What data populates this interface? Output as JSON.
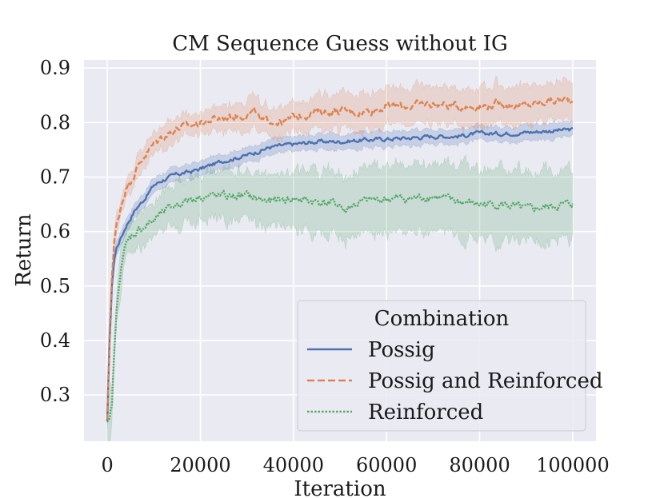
{
  "chart_data": {
    "type": "line",
    "title": "CM Sequence Guess without IG",
    "xlabel": "Iteration",
    "ylabel": "Return",
    "xlim": [
      -5000,
      105000
    ],
    "ylim": [
      0.215,
      0.915
    ],
    "xticks": [
      0,
      20000,
      40000,
      60000,
      80000,
      100000
    ],
    "xtick_labels": [
      "0",
      "20000",
      "40000",
      "60000",
      "80000",
      "100000"
    ],
    "yticks": [
      0.3,
      0.4,
      0.5,
      0.6,
      0.7,
      0.8,
      0.9
    ],
    "ytick_labels": [
      "0.3",
      "0.4",
      "0.5",
      "0.6",
      "0.7",
      "0.8",
      "0.9"
    ],
    "grid": true,
    "legend": {
      "title": "Combination",
      "position": "lower-right"
    },
    "series": [
      {
        "name": "Possig",
        "color": "#4c72b0",
        "dash": "solid",
        "band_width": 0.012,
        "x": [
          0,
          500,
          1000,
          1500,
          2000,
          3000,
          4000,
          6000,
          8000,
          10000,
          12000,
          15000,
          18000,
          20000,
          25000,
          30000,
          35000,
          40000,
          45000,
          50000,
          55000,
          60000,
          65000,
          70000,
          75000,
          80000,
          85000,
          90000,
          95000,
          100000
        ],
        "y": [
          0.25,
          0.4,
          0.5,
          0.55,
          0.57,
          0.59,
          0.61,
          0.64,
          0.66,
          0.685,
          0.695,
          0.705,
          0.71,
          0.715,
          0.73,
          0.74,
          0.755,
          0.76,
          0.765,
          0.765,
          0.768,
          0.77,
          0.772,
          0.775,
          0.775,
          0.78,
          0.78,
          0.782,
          0.785,
          0.787
        ]
      },
      {
        "name": "Possig and Reinforced",
        "color": "#dd8452",
        "dash": "dashed",
        "band_width": 0.03,
        "x": [
          0,
          500,
          1000,
          1500,
          2000,
          3000,
          4000,
          6000,
          8000,
          10000,
          12000,
          15000,
          18000,
          20000,
          25000,
          30000,
          32000,
          33000,
          35000,
          38000,
          40000,
          45000,
          50000,
          55000,
          60000,
          65000,
          70000,
          75000,
          80000,
          85000,
          90000,
          95000,
          100000
        ],
        "y": [
          0.25,
          0.42,
          0.52,
          0.58,
          0.61,
          0.65,
          0.68,
          0.71,
          0.74,
          0.76,
          0.775,
          0.79,
          0.795,
          0.8,
          0.81,
          0.815,
          0.82,
          0.8,
          0.805,
          0.8,
          0.81,
          0.82,
          0.822,
          0.82,
          0.83,
          0.83,
          0.835,
          0.83,
          0.83,
          0.835,
          0.83,
          0.84,
          0.842
        ]
      },
      {
        "name": "Reinforced",
        "color": "#55a868",
        "dash": "dotted",
        "band_width": 0.055,
        "x": [
          0,
          500,
          1000,
          1500,
          2000,
          2500,
          3000,
          4000,
          5000,
          7000,
          10000,
          12000,
          15000,
          18000,
          20000,
          25000,
          30000,
          35000,
          40000,
          45000,
          50000,
          51000,
          52000,
          55000,
          60000,
          65000,
          70000,
          75000,
          80000,
          85000,
          90000,
          95000,
          100000
        ],
        "y": [
          0.245,
          0.25,
          0.28,
          0.38,
          0.45,
          0.5,
          0.54,
          0.575,
          0.59,
          0.605,
          0.62,
          0.635,
          0.65,
          0.66,
          0.665,
          0.665,
          0.665,
          0.655,
          0.66,
          0.655,
          0.65,
          0.635,
          0.645,
          0.655,
          0.66,
          0.66,
          0.665,
          0.655,
          0.65,
          0.65,
          0.64,
          0.645,
          0.652
        ]
      }
    ]
  }
}
